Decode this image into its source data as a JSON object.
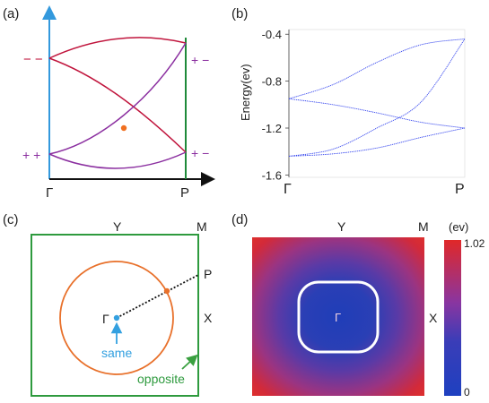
{
  "panels": {
    "a": {
      "label": "(a)",
      "gamma": "Γ",
      "p": "P",
      "left_top": "− −",
      "left_bottom": "+ +",
      "right_top": "+ −",
      "right_bottom": "+ −"
    },
    "b": {
      "label": "(b)",
      "ylabel": "Energy(ev)",
      "x_ticks": [
        "Γ",
        "P"
      ],
      "y_ticks": [
        "-0.4",
        "-0.8",
        "-1.2",
        "-1.6"
      ]
    },
    "c": {
      "label": "(c)",
      "Y": "Y",
      "M": "M",
      "P": "P",
      "X": "X",
      "gamma": "Γ",
      "same": "same",
      "opposite": "opposite"
    },
    "d": {
      "label": "(d)",
      "Y": "Y",
      "M": "M",
      "X": "X",
      "gamma": "Γ",
      "unit": "(ev)",
      "cmax": "1.02",
      "cmin": "0"
    }
  },
  "colors": {
    "red_band": "#c0143c",
    "purple_band": "#8b2fa0",
    "axis_blue": "#3399dd",
    "axis_green": "#1f8a3a",
    "crossing": "#f07020",
    "plot_blue": "#3344ee",
    "box_green": "#2e9a3e",
    "circle_orange": "#e8702a",
    "label_blue": "#33a0e0",
    "label_green": "#2e9a3e"
  },
  "chart_data": {
    "type": "line",
    "xlabel": "",
    "ylabel": "Energy(ev)",
    "categories": [
      "Γ",
      "P"
    ],
    "ylim": [
      -1.62,
      -0.36
    ],
    "x": [
      0,
      0.25,
      0.5,
      0.75,
      1
    ],
    "series": [
      {
        "values": [
          -0.95,
          -0.83,
          -0.64,
          -0.49,
          -0.44
        ]
      },
      {
        "values": [
          -0.95,
          -1.0,
          -1.07,
          -1.15,
          -1.2
        ]
      },
      {
        "values": [
          -1.44,
          -1.38,
          -1.2,
          -0.98,
          -0.44
        ]
      },
      {
        "values": [
          -1.44,
          -1.42,
          -1.37,
          -1.28,
          -1.2
        ]
      }
    ]
  }
}
